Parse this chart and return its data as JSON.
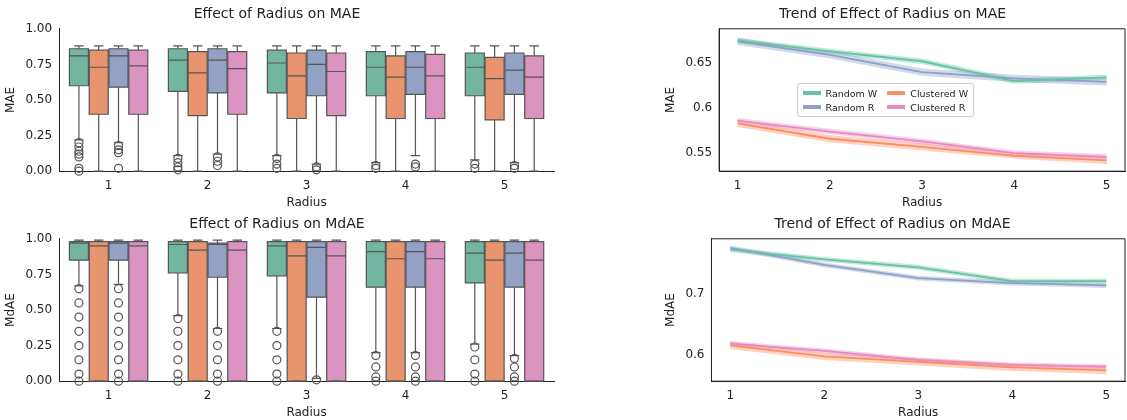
{
  "chart_data": [
    {
      "type": "box",
      "title": "Effect of Radius on MAE",
      "xlabel": "Radius",
      "ylabel": "MAE",
      "categories": [
        "1",
        "2",
        "3",
        "4",
        "5"
      ],
      "ylim": [
        0,
        1
      ],
      "yticks": [
        {
          "value": 0,
          "label": "0.00"
        },
        {
          "value": 0.25,
          "label": "0.25"
        },
        {
          "value": 0.5,
          "label": "0.50"
        },
        {
          "value": 0.75,
          "label": "0.75"
        },
        {
          "value": 1,
          "label": "1.00"
        }
      ],
      "marker": "circle",
      "series": [
        {
          "color": "#72b6a1",
          "boxes": [
            {
              "low": 0.22,
              "q1": 0.6,
              "median": 0.81,
              "q3": 0.86,
              "high": 0.88,
              "outliers": [
                0.2,
                0.17,
                0.14,
                0.12,
                0.1,
                0.02,
                0
              ]
            },
            {
              "low": 0.11,
              "q1": 0.56,
              "median": 0.78,
              "q3": 0.86,
              "high": 0.88,
              "outliers": [
                0.09,
                0.06,
                0.03,
                0.01
              ]
            },
            {
              "low": 0.11,
              "q1": 0.55,
              "median": 0.76,
              "q3": 0.85,
              "high": 0.88,
              "outliers": [
                0.09,
                0.05,
                0.02
              ]
            },
            {
              "low": 0.06,
              "q1": 0.53,
              "median": 0.73,
              "q3": 0.84,
              "high": 0.88,
              "outliers": [
                0.04,
                0.02
              ]
            },
            {
              "low": 0.08,
              "q1": 0.53,
              "median": 0.73,
              "q3": 0.83,
              "high": 0.88,
              "outliers": [
                0.05,
                0.02
              ]
            }
          ]
        },
        {
          "color": "#e8946f",
          "boxes": [
            {
              "low": 0,
              "q1": 0.4,
              "median": 0.73,
              "q3": 0.85,
              "high": 0.88
            },
            {
              "low": 0,
              "q1": 0.39,
              "median": 0.69,
              "q3": 0.84,
              "high": 0.88
            },
            {
              "low": 0,
              "q1": 0.37,
              "median": 0.67,
              "q3": 0.83,
              "high": 0.88
            },
            {
              "low": 0,
              "q1": 0.37,
              "median": 0.66,
              "q3": 0.81,
              "high": 0.88
            },
            {
              "low": 0,
              "q1": 0.36,
              "median": 0.65,
              "q3": 0.8,
              "high": 0.88
            }
          ]
        },
        {
          "color": "#93a1c5",
          "boxes": [
            {
              "low": 0.2,
              "q1": 0.59,
              "median": 0.81,
              "q3": 0.86,
              "high": 0.88,
              "outliers": [
                0.18,
                0.15,
                0.13,
                0.02
              ]
            },
            {
              "low": 0.12,
              "q1": 0.55,
              "median": 0.78,
              "q3": 0.86,
              "high": 0.88,
              "outliers": [
                0.1,
                0.07,
                0.04
              ]
            },
            {
              "low": 0.05,
              "q1": 0.53,
              "median": 0.75,
              "q3": 0.85,
              "high": 0.88,
              "outliers": [
                0.03,
                0.01
              ]
            },
            {
              "low": 0.11,
              "q1": 0.54,
              "median": 0.73,
              "q3": 0.84,
              "high": 0.88,
              "outliers": [
                0.05,
                0.03
              ]
            },
            {
              "low": 0.06,
              "q1": 0.54,
              "median": 0.71,
              "q3": 0.83,
              "high": 0.88,
              "outliers": [
                0.04,
                0.02
              ]
            }
          ]
        },
        {
          "color": "#db93c0",
          "boxes": [
            {
              "low": 0,
              "q1": 0.4,
              "median": 0.74,
              "q3": 0.85,
              "high": 0.88
            },
            {
              "low": 0,
              "q1": 0.4,
              "median": 0.72,
              "q3": 0.84,
              "high": 0.88
            },
            {
              "low": 0,
              "q1": 0.39,
              "median": 0.7,
              "q3": 0.83,
              "high": 0.88
            },
            {
              "low": 0,
              "q1": 0.37,
              "median": 0.67,
              "q3": 0.82,
              "high": 0.88
            },
            {
              "low": 0,
              "q1": 0.37,
              "median": 0.66,
              "q3": 0.81,
              "high": 0.88
            }
          ]
        }
      ]
    },
    {
      "type": "line",
      "title": "Trend of Effect of Radius on MAE",
      "xlabel": "Radius",
      "ylabel": "MAE",
      "x": [
        1,
        2,
        3,
        4,
        5
      ],
      "xlim": [
        0.8,
        5.2
      ],
      "xticks": [
        1,
        2,
        3,
        4,
        5
      ],
      "ylim": [
        0.53,
        0.688
      ],
      "yticks": [
        0.55,
        0.6,
        0.65
      ],
      "marker": "none",
      "legend": "center",
      "series": [
        {
          "name": "Random W",
          "color": "#66c2a5",
          "values": [
            0.675,
            0.663,
            0.652,
            0.63,
            0.634
          ],
          "lower": [
            0.672,
            0.66,
            0.649,
            0.627,
            0.631
          ],
          "upper": [
            0.678,
            0.666,
            0.655,
            0.633,
            0.637
          ]
        },
        {
          "name": "Clustered W",
          "color": "#fc8d62",
          "values": [
            0.583,
            0.566,
            0.557,
            0.547,
            0.542
          ],
          "lower": [
            0.579,
            0.562,
            0.553,
            0.544,
            0.538
          ],
          "upper": [
            0.587,
            0.57,
            0.561,
            0.55,
            0.546
          ]
        },
        {
          "name": "Random R",
          "color": "#8da0cb",
          "values": [
            0.674,
            0.659,
            0.64,
            0.633,
            0.629
          ],
          "lower": [
            0.67,
            0.655,
            0.636,
            0.629,
            0.625
          ],
          "upper": [
            0.678,
            0.663,
            0.644,
            0.637,
            0.633
          ]
        },
        {
          "name": "Clustered R",
          "color": "#e78ac3",
          "values": [
            0.586,
            0.574,
            0.563,
            0.55,
            0.546
          ],
          "lower": [
            0.583,
            0.571,
            0.56,
            0.547,
            0.543
          ],
          "upper": [
            0.589,
            0.577,
            0.566,
            0.553,
            0.549
          ]
        }
      ]
    },
    {
      "type": "box",
      "title": "Effect of Radius on MdAE",
      "xlabel": "Radius",
      "ylabel": "MdAE",
      "categories": [
        "1",
        "2",
        "3",
        "4",
        "5"
      ],
      "ylim": [
        0,
        1
      ],
      "yticks": [
        {
          "value": 0,
          "label": "0.00"
        },
        {
          "value": 0.25,
          "label": "0.25"
        },
        {
          "value": 0.5,
          "label": "0.50"
        },
        {
          "value": 0.75,
          "label": "0.75"
        },
        {
          "value": 1,
          "label": "1.00"
        }
      ],
      "marker": "circle",
      "series": [
        {
          "color": "#72b6a1",
          "boxes": [
            {
              "low": 0.67,
              "q1": 0.85,
              "median": 0.97,
              "q3": 0.98,
              "high": 0.99,
              "outliers": [
                0.65,
                0.55,
                0.45,
                0.35,
                0.25,
                0.15,
                0.05,
                0
              ]
            },
            {
              "low": 0.46,
              "q1": 0.76,
              "median": 0.96,
              "q3": 0.98,
              "high": 0.99,
              "outliers": [
                0.44,
                0.35,
                0.25,
                0.15,
                0.05,
                0
              ]
            },
            {
              "low": 0.37,
              "q1": 0.74,
              "median": 0.95,
              "q3": 0.98,
              "high": 0.99,
              "outliers": [
                0.35,
                0.25,
                0.15,
                0.05,
                0
              ]
            },
            {
              "low": 0.2,
              "q1": 0.66,
              "median": 0.91,
              "q3": 0.98,
              "high": 0.99,
              "outliers": [
                0.18,
                0.1,
                0.03,
                0
              ]
            },
            {
              "low": 0.26,
              "q1": 0.69,
              "median": 0.9,
              "q3": 0.98,
              "high": 0.99,
              "outliers": [
                0.24,
                0.15,
                0.05,
                0
              ]
            }
          ]
        },
        {
          "color": "#e8946f",
          "boxes": [
            {
              "low": 0,
              "q1": 0,
              "median": 0.95,
              "q3": 0.98,
              "high": 0.99
            },
            {
              "low": 0,
              "q1": 0,
              "median": 0.92,
              "q3": 0.98,
              "high": 0.99
            },
            {
              "low": 0,
              "q1": 0,
              "median": 0.88,
              "q3": 0.98,
              "high": 0.99
            },
            {
              "low": 0,
              "q1": 0,
              "median": 0.86,
              "q3": 0.98,
              "high": 0.99
            },
            {
              "low": 0,
              "q1": 0,
              "median": 0.85,
              "q3": 0.98,
              "high": 0.99
            }
          ]
        },
        {
          "color": "#93a1c5",
          "boxes": [
            {
              "low": 0.68,
              "q1": 0.85,
              "median": 0.97,
              "q3": 0.98,
              "high": 0.99,
              "outliers": [
                0.65,
                0.55,
                0.45,
                0.35,
                0.25,
                0.15,
                0.05,
                0
              ]
            },
            {
              "low": 0.37,
              "q1": 0.73,
              "median": 0.96,
              "q3": 0.97,
              "high": 0.99,
              "outliers": [
                0.35,
                0.25,
                0.15,
                0.05,
                0
              ]
            },
            {
              "low": 0.02,
              "q1": 0.59,
              "median": 0.94,
              "q3": 0.98,
              "high": 0.99,
              "outliers": [
                0.01
              ]
            },
            {
              "low": 0.2,
              "q1": 0.66,
              "median": 0.91,
              "q3": 0.98,
              "high": 0.99,
              "outliers": [
                0.18,
                0.1,
                0.03,
                0
              ]
            },
            {
              "low": 0.18,
              "q1": 0.66,
              "median": 0.9,
              "q3": 0.98,
              "high": 0.99,
              "outliers": [
                0.16,
                0.1,
                0.03,
                0
              ]
            }
          ]
        },
        {
          "color": "#db93c0",
          "boxes": [
            {
              "low": 0,
              "q1": 0,
              "median": 0.95,
              "q3": 0.98,
              "high": 0.99
            },
            {
              "low": 0,
              "q1": 0,
              "median": 0.92,
              "q3": 0.98,
              "high": 0.99
            },
            {
              "low": 0,
              "q1": 0,
              "median": 0.88,
              "q3": 0.98,
              "high": 0.99
            },
            {
              "low": 0,
              "q1": 0,
              "median": 0.86,
              "q3": 0.98,
              "high": 0.99
            },
            {
              "low": 0,
              "q1": 0,
              "median": 0.85,
              "q3": 0.98,
              "high": 0.99
            }
          ]
        }
      ]
    },
    {
      "type": "line",
      "title": "Trend of Effect of Radius on MdAE",
      "xlabel": "Radius",
      "ylabel": "MdAE",
      "x": [
        1,
        2,
        3,
        4,
        5
      ],
      "xlim": [
        0.8,
        5.2
      ],
      "xticks": [
        1,
        2,
        3,
        4,
        5
      ],
      "ylim": [
        0.556,
        0.791
      ],
      "yticks": [
        0.6,
        0.7
      ],
      "marker": "none",
      "series": [
        {
          "color": "#66c2a5",
          "values": [
            0.773,
            0.757,
            0.744,
            0.721,
            0.721
          ],
          "lower": [
            0.769,
            0.753,
            0.74,
            0.717,
            0.717
          ],
          "upper": [
            0.777,
            0.761,
            0.748,
            0.725,
            0.725
          ]
        },
        {
          "color": "#fc8d62",
          "values": [
            0.615,
            0.597,
            0.588,
            0.579,
            0.574
          ],
          "lower": [
            0.609,
            0.591,
            0.582,
            0.573,
            0.568
          ],
          "upper": [
            0.621,
            0.603,
            0.594,
            0.585,
            0.58
          ]
        },
        {
          "color": "#8da0cb",
          "values": [
            0.776,
            0.748,
            0.726,
            0.718,
            0.714
          ],
          "lower": [
            0.772,
            0.744,
            0.722,
            0.714,
            0.71
          ],
          "upper": [
            0.78,
            0.752,
            0.73,
            0.722,
            0.718
          ]
        },
        {
          "color": "#e78ac3",
          "values": [
            0.618,
            0.606,
            0.591,
            0.583,
            0.58
          ],
          "lower": [
            0.614,
            0.602,
            0.587,
            0.579,
            0.576
          ],
          "upper": [
            0.622,
            0.61,
            0.595,
            0.587,
            0.584
          ]
        }
      ]
    }
  ]
}
